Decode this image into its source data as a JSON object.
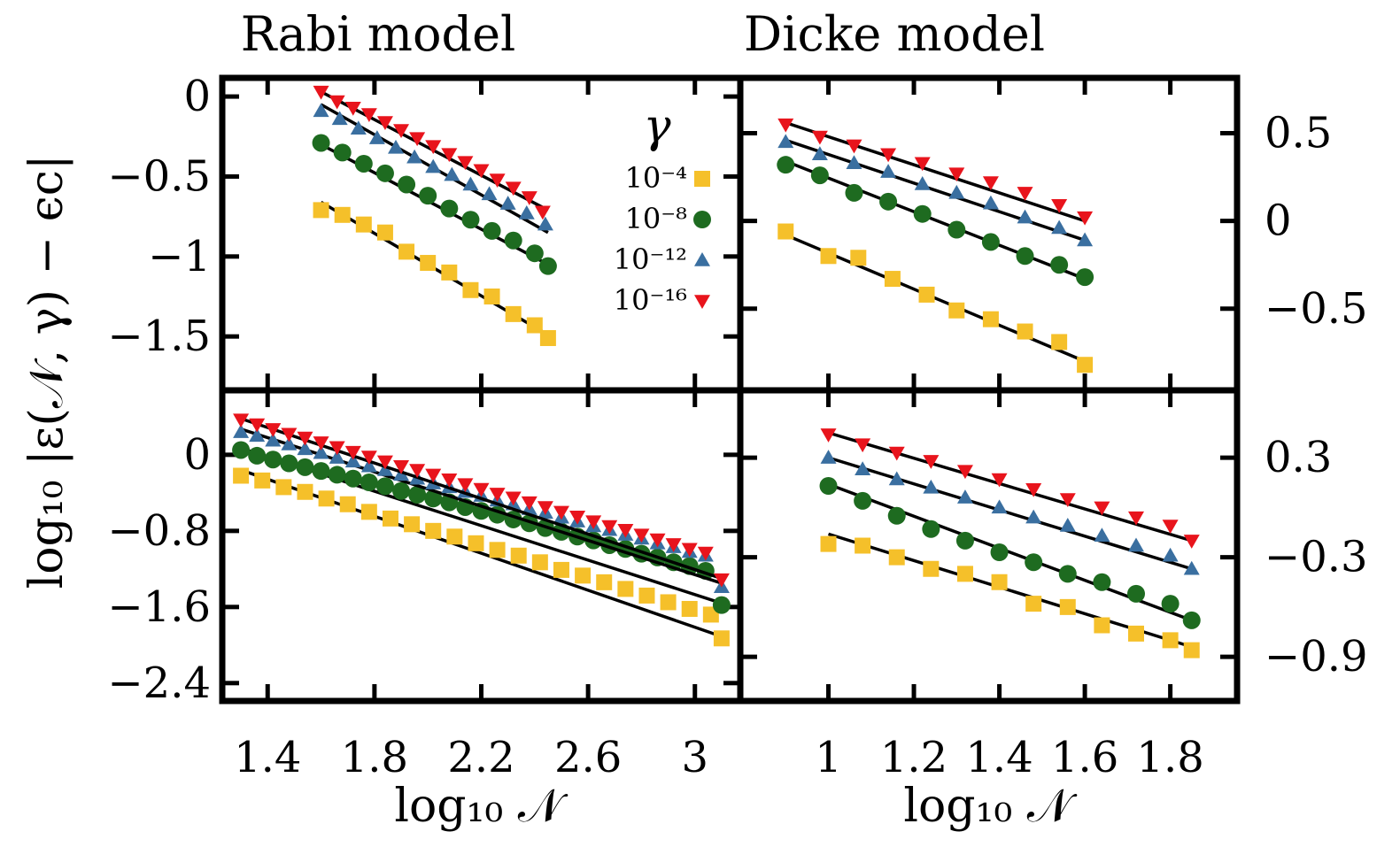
{
  "titles": {
    "rabi": "Rabi model",
    "dicke": "Dicke model"
  },
  "axes": {
    "xlabel_rabi": "log₁₀ 𝒩",
    "xlabel_dicke": "log₁₀ 𝒩",
    "ylabel": "log₁₀ |ε(𝒩, γ) − ϵc|"
  },
  "legend": {
    "title": "γ",
    "entries": [
      "10⁻⁴",
      "10⁻⁸",
      "10⁻¹²",
      "10⁻¹⁶"
    ]
  },
  "colors": {
    "1e-4": "#f5c02a",
    "1e-8": "#1e6b20",
    "1e-12": "#3a6fa0",
    "1e-16": "#e8141c",
    "fit_line": "#000000",
    "frame": "#000000"
  },
  "chart_data": [
    {
      "panel": "top-left",
      "type": "scatter",
      "title": "Rabi model",
      "xlim": [
        1.24,
        3.16
      ],
      "ylim": [
        -1.82,
        0.1
      ],
      "x_ticks": [
        1.4,
        1.8,
        2.2,
        2.6,
        3.0
      ],
      "x_ticklabels": [
        "",
        "",
        "",
        "",
        ""
      ],
      "y_ticks": [
        0,
        -0.5,
        -1,
        -1.5
      ],
      "y_ticklabels": [
        "0",
        "−0.5",
        "−1",
        "−1.5"
      ],
      "y_ticklabel_side": "left",
      "legend_position": "upper-right",
      "series": [
        {
          "name": "10⁻⁴",
          "marker": "square",
          "x": [
            1.6,
            1.68,
            1.76,
            1.84,
            1.92,
            2.0,
            2.08,
            2.16,
            2.24,
            2.32,
            2.4,
            2.45
          ],
          "y": [
            -0.71,
            -0.74,
            -0.8,
            -0.85,
            -0.97,
            -1.04,
            -1.1,
            -1.21,
            -1.25,
            -1.36,
            -1.43,
            -1.51
          ],
          "fit": [
            [
              1.6,
              -0.66
            ],
            [
              2.45,
              -1.49
            ]
          ]
        },
        {
          "name": "10⁻⁸",
          "marker": "circle",
          "x": [
            1.6,
            1.68,
            1.76,
            1.84,
            1.92,
            2.0,
            2.08,
            2.16,
            2.24,
            2.32,
            2.4,
            2.45
          ],
          "y": [
            -0.29,
            -0.35,
            -0.42,
            -0.48,
            -0.55,
            -0.62,
            -0.7,
            -0.77,
            -0.84,
            -0.9,
            -0.98,
            -1.06
          ],
          "fit": [
            [
              1.6,
              -0.3
            ],
            [
              2.45,
              -1.05
            ]
          ]
        },
        {
          "name": "10⁻¹²",
          "marker": "triangle-up",
          "x": [
            1.6,
            1.67,
            1.74,
            1.81,
            1.88,
            1.95,
            2.02,
            2.09,
            2.16,
            2.23,
            2.3,
            2.37,
            2.44
          ],
          "y": [
            -0.09,
            -0.14,
            -0.2,
            -0.26,
            -0.32,
            -0.38,
            -0.44,
            -0.49,
            -0.55,
            -0.61,
            -0.67,
            -0.73,
            -0.8
          ],
          "fit": [
            [
              1.6,
              -0.05
            ],
            [
              2.45,
              -0.85
            ]
          ]
        },
        {
          "name": "10⁻¹⁶",
          "marker": "triangle-down",
          "x": [
            1.6,
            1.66,
            1.72,
            1.78,
            1.84,
            1.9,
            1.96,
            2.02,
            2.08,
            2.14,
            2.2,
            2.26,
            2.32,
            2.38,
            2.43
          ],
          "y": [
            0.03,
            -0.03,
            -0.07,
            -0.11,
            -0.16,
            -0.21,
            -0.26,
            -0.31,
            -0.36,
            -0.41,
            -0.46,
            -0.52,
            -0.57,
            -0.63,
            -0.72
          ],
          "fit": [
            [
              1.6,
              0.03
            ],
            [
              2.45,
              -0.71
            ]
          ]
        }
      ]
    },
    {
      "panel": "top-right",
      "type": "scatter",
      "title": "Dicke model",
      "xlim": [
        0.8,
        1.95
      ],
      "ylim": [
        -0.95,
        0.8
      ],
      "x_ticks": [
        1.0,
        1.2,
        1.4,
        1.6,
        1.8
      ],
      "x_ticklabels": [
        "",
        "",
        "",
        "",
        ""
      ],
      "y_ticks": [
        0.5,
        0,
        -0.5
      ],
      "y_ticklabels": [
        "0.5",
        "0",
        "−0.5"
      ],
      "y_ticklabel_side": "right",
      "series": [
        {
          "name": "10⁻⁴",
          "marker": "square",
          "x": [
            0.9,
            1.0,
            1.07,
            1.15,
            1.23,
            1.3,
            1.38,
            1.46,
            1.54,
            1.6
          ],
          "y": [
            -0.06,
            -0.2,
            -0.21,
            -0.33,
            -0.42,
            -0.51,
            -0.56,
            -0.63,
            -0.69,
            -0.82
          ],
          "fit": [
            [
              0.9,
              -0.08
            ],
            [
              1.6,
              -0.8
            ]
          ]
        },
        {
          "name": "10⁻⁸",
          "marker": "circle",
          "x": [
            0.9,
            0.98,
            1.06,
            1.14,
            1.22,
            1.3,
            1.38,
            1.46,
            1.54,
            1.6
          ],
          "y": [
            0.32,
            0.26,
            0.16,
            0.11,
            0.04,
            -0.05,
            -0.12,
            -0.2,
            -0.25,
            -0.32
          ],
          "fit": [
            [
              0.9,
              0.34
            ],
            [
              1.6,
              -0.33
            ]
          ]
        },
        {
          "name": "10⁻¹²",
          "marker": "triangle-up",
          "x": [
            0.9,
            0.98,
            1.06,
            1.14,
            1.22,
            1.3,
            1.38,
            1.46,
            1.54,
            1.6
          ],
          "y": [
            0.45,
            0.38,
            0.33,
            0.28,
            0.21,
            0.16,
            0.1,
            0.02,
            -0.04,
            -0.11
          ],
          "fit": [
            [
              0.9,
              0.46
            ],
            [
              1.6,
              -0.11
            ]
          ]
        },
        {
          "name": "10⁻¹⁶",
          "marker": "triangle-down",
          "x": [
            0.9,
            0.98,
            1.06,
            1.14,
            1.22,
            1.3,
            1.38,
            1.46,
            1.54,
            1.6
          ],
          "y": [
            0.55,
            0.48,
            0.43,
            0.38,
            0.33,
            0.27,
            0.22,
            0.16,
            0.09,
            0.02
          ],
          "fit": [
            [
              0.9,
              0.56
            ],
            [
              1.6,
              0.0
            ]
          ]
        }
      ]
    },
    {
      "panel": "bottom-left",
      "type": "scatter",
      "title": "",
      "xlabel": "log₁₀ 𝒩",
      "xlim": [
        1.24,
        3.16
      ],
      "ylim": [
        -2.56,
        0.65
      ],
      "x_ticks": [
        1.4,
        1.8,
        2.2,
        2.6,
        3.0
      ],
      "x_ticklabels": [
        "1.4",
        "1.8",
        "2.2",
        "2.6",
        "3"
      ],
      "y_ticks": [
        0,
        -0.8,
        -1.6,
        -2.4
      ],
      "y_ticklabels": [
        "0",
        "−0.8",
        "−1.6",
        "−2.4"
      ],
      "y_ticklabel_side": "left",
      "series": [
        {
          "name": "10⁻⁴",
          "marker": "square",
          "x": [
            1.3,
            1.38,
            1.46,
            1.54,
            1.62,
            1.7,
            1.78,
            1.86,
            1.94,
            2.02,
            2.1,
            2.18,
            2.26,
            2.34,
            2.42,
            2.5,
            2.58,
            2.66,
            2.74,
            2.82,
            2.9,
            2.98,
            3.06,
            3.1
          ],
          "y": [
            -0.22,
            -0.27,
            -0.34,
            -0.39,
            -0.46,
            -0.52,
            -0.6,
            -0.67,
            -0.73,
            -0.8,
            -0.86,
            -0.93,
            -1.0,
            -1.06,
            -1.13,
            -1.21,
            -1.27,
            -1.34,
            -1.41,
            -1.48,
            -1.55,
            -1.62,
            -1.68,
            -1.93
          ],
          "fit": [
            [
              1.3,
              -0.16
            ],
            [
              3.1,
              -1.91
            ]
          ]
        },
        {
          "name": "10⁻⁸",
          "marker": "circle",
          "x": [
            1.3,
            1.36,
            1.42,
            1.48,
            1.54,
            1.6,
            1.66,
            1.72,
            1.78,
            1.84,
            1.9,
            1.96,
            2.02,
            2.08,
            2.14,
            2.2,
            2.26,
            2.32,
            2.38,
            2.44,
            2.5,
            2.56,
            2.62,
            2.68,
            2.74,
            2.8,
            2.86,
            2.92,
            2.98,
            3.04,
            3.1
          ],
          "y": [
            0.05,
            -0.01,
            -0.05,
            -0.09,
            -0.13,
            -0.17,
            -0.21,
            -0.25,
            -0.29,
            -0.33,
            -0.38,
            -0.42,
            -0.46,
            -0.5,
            -0.55,
            -0.59,
            -0.63,
            -0.68,
            -0.72,
            -0.77,
            -0.81,
            -0.86,
            -0.9,
            -0.95,
            -0.99,
            -1.04,
            -1.08,
            -1.13,
            -1.17,
            -1.22,
            -1.58
          ],
          "fit": [
            [
              1.3,
              0.07
            ],
            [
              3.1,
              -1.56
            ]
          ]
        },
        {
          "name": "10⁻¹²",
          "marker": "triangle-up",
          "x": [
            1.3,
            1.36,
            1.42,
            1.48,
            1.54,
            1.6,
            1.66,
            1.72,
            1.78,
            1.84,
            1.9,
            1.96,
            2.02,
            2.08,
            2.14,
            2.2,
            2.26,
            2.32,
            2.38,
            2.44,
            2.5,
            2.56,
            2.62,
            2.68,
            2.74,
            2.8,
            2.86,
            2.92,
            2.98,
            3.04,
            3.1
          ],
          "y": [
            0.24,
            0.2,
            0.15,
            0.11,
            0.06,
            0.02,
            -0.03,
            -0.07,
            -0.12,
            -0.16,
            -0.21,
            -0.25,
            -0.3,
            -0.34,
            -0.39,
            -0.43,
            -0.48,
            -0.52,
            -0.57,
            -0.61,
            -0.66,
            -0.7,
            -0.75,
            -0.79,
            -0.84,
            -0.88,
            -0.93,
            -0.97,
            -1.02,
            -1.06,
            -1.39
          ],
          "fit": [
            [
              1.3,
              0.27
            ],
            [
              3.1,
              -1.35
            ]
          ]
        },
        {
          "name": "10⁻¹⁶",
          "marker": "triangle-down",
          "x": [
            1.3,
            1.36,
            1.42,
            1.48,
            1.54,
            1.6,
            1.66,
            1.72,
            1.78,
            1.84,
            1.9,
            1.96,
            2.02,
            2.08,
            2.14,
            2.2,
            2.26,
            2.32,
            2.38,
            2.44,
            2.5,
            2.56,
            2.62,
            2.68,
            2.74,
            2.8,
            2.86,
            2.92,
            2.98,
            3.04,
            3.1
          ],
          "y": [
            0.37,
            0.32,
            0.27,
            0.22,
            0.18,
            0.13,
            0.08,
            0.03,
            -0.02,
            -0.07,
            -0.12,
            -0.16,
            -0.21,
            -0.26,
            -0.31,
            -0.36,
            -0.41,
            -0.45,
            -0.5,
            -0.55,
            -0.6,
            -0.65,
            -0.7,
            -0.75,
            -0.79,
            -0.84,
            -0.89,
            -0.94,
            -0.99,
            -1.03,
            -1.31
          ],
          "fit": [
            [
              1.3,
              0.38
            ],
            [
              3.1,
              -1.3
            ]
          ]
        }
      ]
    },
    {
      "panel": "bottom-right",
      "type": "scatter",
      "title": "",
      "xlabel": "log₁₀ 𝒩",
      "xlim": [
        0.8,
        1.95
      ],
      "ylim": [
        -1.15,
        0.69
      ],
      "x_ticks": [
        1.0,
        1.2,
        1.4,
        1.6,
        1.8
      ],
      "x_ticklabels": [
        "1",
        "1.2",
        "1.4",
        "1.6",
        "1.8"
      ],
      "y_ticks": [
        0.3,
        -0.3,
        -0.9
      ],
      "y_ticklabels": [
        "0.3",
        "−0.3",
        "−0.9"
      ],
      "y_ticklabel_side": "right",
      "series": [
        {
          "name": "10⁻⁴",
          "marker": "square",
          "x": [
            1.0,
            1.08,
            1.16,
            1.24,
            1.32,
            1.4,
            1.48,
            1.56,
            1.64,
            1.72,
            1.8,
            1.85
          ],
          "y": [
            -0.22,
            -0.23,
            -0.3,
            -0.37,
            -0.4,
            -0.45,
            -0.58,
            -0.6,
            -0.71,
            -0.76,
            -0.8,
            -0.86
          ],
          "fit": [
            [
              1.0,
              -0.16
            ],
            [
              1.85,
              -0.84
            ]
          ]
        },
        {
          "name": "10⁻⁸",
          "marker": "circle",
          "x": [
            1.0,
            1.08,
            1.16,
            1.24,
            1.32,
            1.4,
            1.48,
            1.56,
            1.64,
            1.72,
            1.8,
            1.85
          ],
          "y": [
            0.13,
            0.04,
            -0.05,
            -0.13,
            -0.2,
            -0.27,
            -0.33,
            -0.4,
            -0.45,
            -0.52,
            -0.58,
            -0.68
          ],
          "fit": [
            [
              1.0,
              0.14
            ],
            [
              1.85,
              -0.68
            ]
          ]
        },
        {
          "name": "10⁻¹²",
          "marker": "triangle-up",
          "x": [
            1.0,
            1.08,
            1.16,
            1.24,
            1.32,
            1.4,
            1.48,
            1.56,
            1.64,
            1.72,
            1.8,
            1.85
          ],
          "y": [
            0.3,
            0.23,
            0.17,
            0.12,
            0.06,
            0.0,
            -0.06,
            -0.11,
            -0.17,
            -0.23,
            -0.29,
            -0.37
          ],
          "fit": [
            [
              1.0,
              0.3
            ],
            [
              1.85,
              -0.37
            ]
          ]
        },
        {
          "name": "10⁻¹⁶",
          "marker": "triangle-down",
          "x": [
            1.0,
            1.08,
            1.16,
            1.24,
            1.32,
            1.4,
            1.48,
            1.56,
            1.64,
            1.72,
            1.8,
            1.85
          ],
          "y": [
            0.44,
            0.38,
            0.33,
            0.28,
            0.22,
            0.17,
            0.11,
            0.05,
            0.0,
            -0.06,
            -0.11,
            -0.2
          ],
          "fit": [
            [
              1.0,
              0.45
            ],
            [
              1.85,
              -0.2
            ]
          ]
        }
      ]
    }
  ]
}
